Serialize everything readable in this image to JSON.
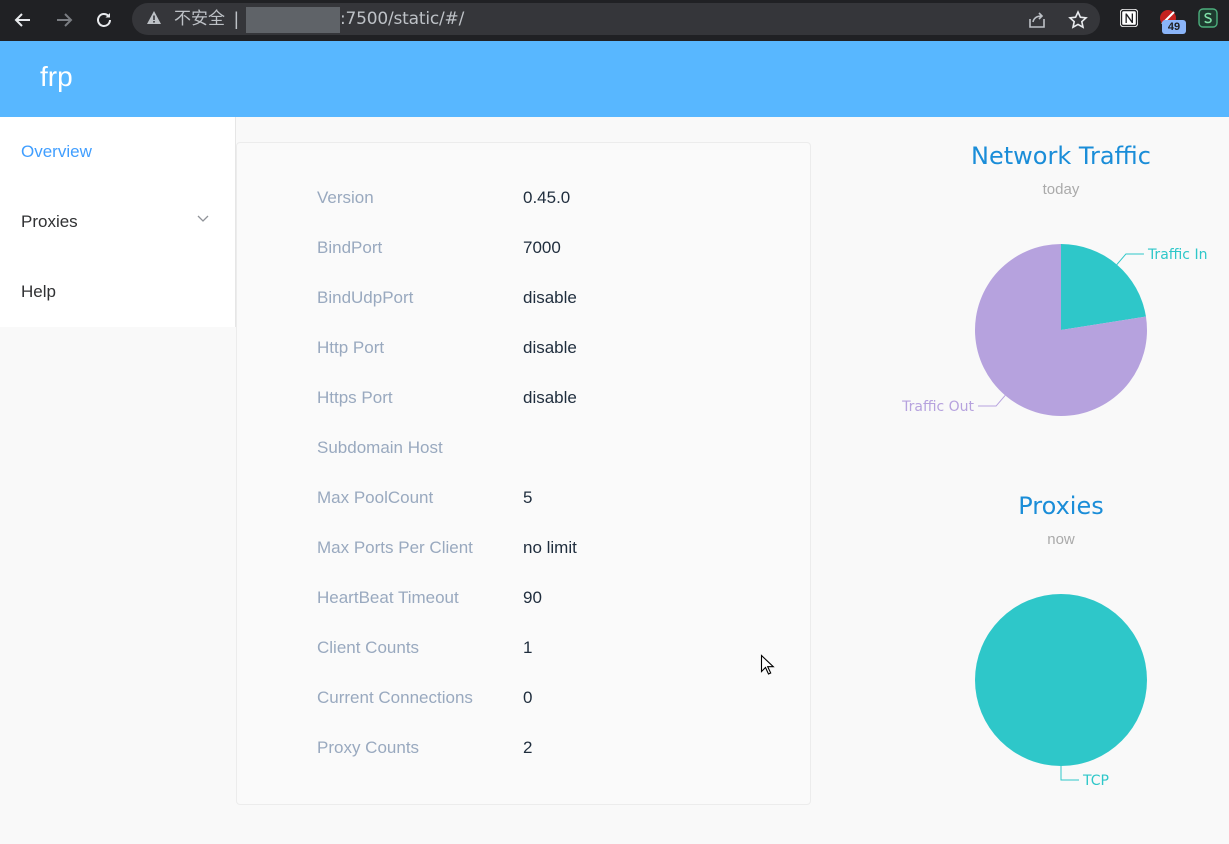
{
  "browser": {
    "security_label": "不安全",
    "separator": "|",
    "url_path": ":7500/static/#/",
    "extension_badge": "49"
  },
  "app": {
    "brand": "frp"
  },
  "sidebar": {
    "items": [
      {
        "label": "Overview",
        "active": true
      },
      {
        "label": "Proxies",
        "expandable": true
      },
      {
        "label": "Help"
      }
    ]
  },
  "server_info": {
    "rows": [
      {
        "key": "Version",
        "value": "0.45.0"
      },
      {
        "key": "BindPort",
        "value": "7000"
      },
      {
        "key": "BindUdpPort",
        "value": "disable"
      },
      {
        "key": "Http Port",
        "value": "disable"
      },
      {
        "key": "Https Port",
        "value": "disable"
      },
      {
        "key": "Subdomain Host",
        "value": ""
      },
      {
        "key": "Max PoolCount",
        "value": "5"
      },
      {
        "key": "Max Ports Per Client",
        "value": "no limit"
      },
      {
        "key": "HeartBeat Timeout",
        "value": "90"
      },
      {
        "key": "Client Counts",
        "value": "1"
      },
      {
        "key": "Current Connections",
        "value": "0"
      },
      {
        "key": "Proxy Counts",
        "value": "2"
      }
    ]
  },
  "charts": {
    "colors": {
      "teal": "#2ec7c9",
      "purple": "#b6a2de",
      "title": "#1a8dd8"
    }
  },
  "chart_data": [
    {
      "type": "pie",
      "title": "Network Traffic",
      "subtitle": "today",
      "categories": [
        "Traffic In",
        "Traffic Out"
      ],
      "values": [
        22.5,
        77.5
      ]
    },
    {
      "type": "pie",
      "title": "Proxies",
      "subtitle": "now",
      "categories": [
        "TCP"
      ],
      "values": [
        100
      ]
    }
  ]
}
